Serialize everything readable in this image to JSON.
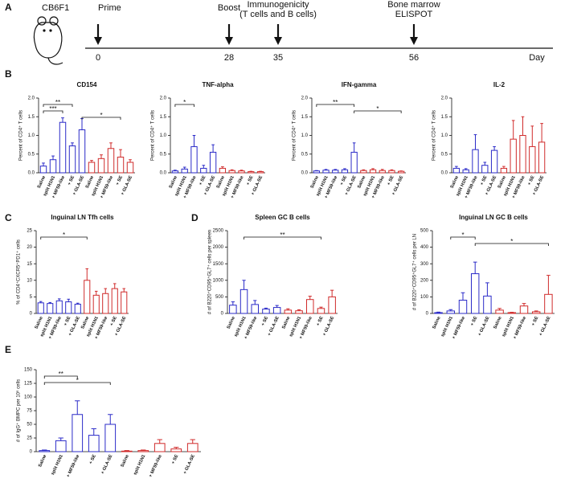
{
  "panels": [
    "A",
    "B",
    "C",
    "D",
    "E"
  ],
  "timeline": {
    "strain": "CB6F1",
    "axis_label": "Day",
    "events": [
      {
        "label": [
          "Prime"
        ],
        "day": "0"
      },
      {
        "label": [
          "Boost"
        ],
        "day": "28"
      },
      {
        "label": [
          "Immunogenicity",
          "(T cells and B cells)"
        ],
        "day": "35"
      },
      {
        "label": [
          "Bone marrow",
          "ELISPOT"
        ],
        "day": "56"
      }
    ]
  },
  "chart_data": [
    {
      "type": "bar",
      "title": "CD154",
      "y_label": "Percent of CD4⁺ T cells",
      "categories": [
        "Saline",
        "split H1N1",
        "+ MF59-like",
        "+ SE",
        "+ GLA-SE",
        "Saline",
        "split H1N1",
        "+ MF59-like",
        "+ SE",
        "+ GLA-SE"
      ],
      "values": [
        0.18,
        0.35,
        1.35,
        0.72,
        1.15,
        0.28,
        0.38,
        0.65,
        0.42,
        0.28
      ],
      "errors": [
        0.08,
        0.1,
        0.12,
        0.08,
        0.3,
        0.05,
        0.1,
        0.15,
        0.2,
        0.07
      ],
      "bar_colors": [
        "#2b2bc8",
        "#2b2bc8",
        "#2b2bc8",
        "#2b2bc8",
        "#2b2bc8",
        "#d02b2b",
        "#d02b2b",
        "#d02b2b",
        "#d02b2b",
        "#d02b2b"
      ],
      "ylim": [
        0,
        2.0
      ],
      "yticks": [
        {
          "value": 0,
          "label": "0.0"
        },
        {
          "value": 0.5,
          "label": "0.5"
        },
        {
          "value": 1.0,
          "label": "1.0"
        },
        {
          "value": 1.5,
          "label": "1.5"
        },
        {
          "value": 2.0,
          "label": "2.0"
        }
      ],
      "annotations": [
        {
          "label": "**",
          "from": 0,
          "to": 3
        },
        {
          "label": "***",
          "from": 0,
          "to": 2
        },
        {
          "label": "*",
          "from": 4,
          "to": 8
        }
      ]
    },
    {
      "type": "bar",
      "title": "TNF-alpha",
      "y_label": "Percent of CD4⁺ T cells",
      "categories": [
        "Saline",
        "split H1N1",
        "+ MF59-like",
        "+ SE",
        "+ GLA-SE",
        "Saline",
        "split H1N1",
        "+ MF59-like",
        "+ SE",
        "+ GLA-SE"
      ],
      "values": [
        0.05,
        0.1,
        0.7,
        0.12,
        0.55,
        0.12,
        0.06,
        0.05,
        0.03,
        0.03
      ],
      "errors": [
        0.02,
        0.05,
        0.3,
        0.08,
        0.2,
        0.04,
        0.02,
        0.02,
        0.01,
        0.01
      ],
      "bar_colors": [
        "#2b2bc8",
        "#2b2bc8",
        "#2b2bc8",
        "#2b2bc8",
        "#2b2bc8",
        "#d02b2b",
        "#d02b2b",
        "#d02b2b",
        "#d02b2b",
        "#d02b2b"
      ],
      "ylim": [
        0,
        2.0
      ],
      "yticks": [
        {
          "value": 0,
          "label": "0.0"
        },
        {
          "value": 0.5,
          "label": "0.5"
        },
        {
          "value": 1.0,
          "label": "1.0"
        },
        {
          "value": 1.5,
          "label": "1.5"
        },
        {
          "value": 2.0,
          "label": "2.0"
        }
      ],
      "annotations": [
        {
          "label": "*",
          "from": 0,
          "to": 2
        }
      ]
    },
    {
      "type": "bar",
      "title": "IFN-gamma",
      "y_label": "Percent of CD4⁺ T cells",
      "categories": [
        "Saline",
        "split H1N1",
        "+ MF59-like",
        "+ SE",
        "+ GLA-SE",
        "Saline",
        "split H1N1",
        "+ MF59-like",
        "+ SE",
        "+ GLA-SE"
      ],
      "values": [
        0.05,
        0.07,
        0.07,
        0.08,
        0.55,
        0.06,
        0.08,
        0.06,
        0.06,
        0.04
      ],
      "errors": [
        0.01,
        0.02,
        0.02,
        0.03,
        0.25,
        0.02,
        0.03,
        0.03,
        0.02,
        0.01
      ],
      "bar_colors": [
        "#2b2bc8",
        "#2b2bc8",
        "#2b2bc8",
        "#2b2bc8",
        "#2b2bc8",
        "#d02b2b",
        "#d02b2b",
        "#d02b2b",
        "#d02b2b",
        "#d02b2b"
      ],
      "ylim": [
        0,
        2.0
      ],
      "yticks": [
        {
          "value": 0,
          "label": "0.0"
        },
        {
          "value": 0.5,
          "label": "0.5"
        },
        {
          "value": 1.0,
          "label": "1.0"
        },
        {
          "value": 1.5,
          "label": "1.5"
        },
        {
          "value": 2.0,
          "label": "2.0"
        }
      ],
      "annotations": [
        {
          "label": "**",
          "from": 0,
          "to": 4
        },
        {
          "label": "*",
          "from": 4,
          "to": 9
        }
      ]
    },
    {
      "type": "bar",
      "title": "IL-2",
      "y_label": "Percent of CD4⁺ T cells",
      "categories": [
        "Saline",
        "split H1N1",
        "+ MF59-like",
        "+ SE",
        "+ GLA-SE",
        "Saline",
        "split H1N1",
        "+ MF59-like",
        "+ SE",
        "+ GLA-SE"
      ],
      "values": [
        0.12,
        0.08,
        0.62,
        0.2,
        0.6,
        0.12,
        0.9,
        1.0,
        0.7,
        0.82
      ],
      "errors": [
        0.05,
        0.03,
        0.4,
        0.08,
        0.1,
        0.05,
        0.5,
        0.5,
        0.55,
        0.5
      ],
      "bar_colors": [
        "#2b2bc8",
        "#2b2bc8",
        "#2b2bc8",
        "#2b2bc8",
        "#2b2bc8",
        "#d02b2b",
        "#d02b2b",
        "#d02b2b",
        "#d02b2b",
        "#d02b2b"
      ],
      "ylim": [
        0,
        2.0
      ],
      "yticks": [
        {
          "value": 0,
          "label": "0.0"
        },
        {
          "value": 0.5,
          "label": "0.5"
        },
        {
          "value": 1.0,
          "label": "1.0"
        },
        {
          "value": 1.5,
          "label": "1.5"
        },
        {
          "value": 2.0,
          "label": "2.0"
        }
      ],
      "annotations": []
    },
    {
      "type": "bar",
      "title": "Inguinal LN Tfh cells",
      "y_label": "% of CD4⁺CXCR5⁺PD1⁺ cells",
      "categories": [
        "Saline",
        "split H1N1",
        "+ MF59-like",
        "+ SE",
        "+ GLA-SE",
        "Saline",
        "split H1N1",
        "+ MF59-like",
        "+ SE",
        "+ GLA-SE"
      ],
      "values": [
        3.2,
        3.0,
        3.8,
        3.5,
        2.8,
        10,
        5.5,
        6,
        7.5,
        6.5
      ],
      "errors": [
        0.4,
        0.3,
        0.6,
        0.8,
        0.3,
        3.5,
        1.2,
        1.5,
        1.5,
        1
      ],
      "bar_colors": [
        "#2b2bc8",
        "#2b2bc8",
        "#2b2bc8",
        "#2b2bc8",
        "#2b2bc8",
        "#d02b2b",
        "#d02b2b",
        "#d02b2b",
        "#d02b2b",
        "#d02b2b"
      ],
      "ylim": [
        0,
        25
      ],
      "yticks": [
        0,
        5,
        10,
        15,
        20,
        25
      ],
      "annotations": [
        {
          "label": "*",
          "from": 0,
          "to": 5
        }
      ]
    },
    {
      "type": "bar",
      "title": "Spleen GC B cells",
      "y_label": "# of B220⁺CD95⁺GL7⁺ cells per spleen",
      "categories": [
        "Saline",
        "split H1N1",
        "+ MF59-like",
        "+ SE",
        "+ GLA-SE",
        "Saline",
        "split H1N1",
        "+ MF59-like",
        "+ SE",
        "+ GLA-SE"
      ],
      "values": [
        250,
        720,
        270,
        130,
        180,
        100,
        80,
        420,
        150,
        500
      ],
      "errors": [
        100,
        280,
        120,
        30,
        60,
        40,
        30,
        100,
        40,
        200
      ],
      "bar_colors": [
        "#2b2bc8",
        "#2b2bc8",
        "#2b2bc8",
        "#2b2bc8",
        "#2b2bc8",
        "#d02b2b",
        "#d02b2b",
        "#d02b2b",
        "#d02b2b",
        "#d02b2b"
      ],
      "ylim": [
        0,
        2500
      ],
      "yticks": [
        0,
        500,
        1000,
        1500,
        2000,
        2500
      ],
      "annotations": [
        {
          "label": "**",
          "from": 1,
          "to": 8
        }
      ]
    },
    {
      "type": "bar",
      "title": "Inguinal LN GC B cells",
      "y_label": "# of B220⁺CD95⁺GL7⁺ cells per LN",
      "categories": [
        "Saline",
        "split H1N1",
        "+ MF59-like",
        "+ SE",
        "+ GLA-SE",
        "Saline",
        "split H1N1",
        "+ MF59-like",
        "+ SE",
        "+ GLA-SE"
      ],
      "values": [
        5,
        15,
        80,
        240,
        105,
        20,
        5,
        45,
        10,
        115
      ],
      "errors": [
        3,
        8,
        45,
        70,
        80,
        10,
        2,
        15,
        5,
        115
      ],
      "bar_colors": [
        "#2b2bc8",
        "#2b2bc8",
        "#2b2bc8",
        "#2b2bc8",
        "#2b2bc8",
        "#d02b2b",
        "#d02b2b",
        "#d02b2b",
        "#d02b2b",
        "#d02b2b"
      ],
      "ylim": [
        0,
        500
      ],
      "yticks": [
        0,
        100,
        200,
        300,
        400,
        500
      ],
      "annotations": [
        {
          "label": "*",
          "from": 1,
          "to": 3
        },
        {
          "label": "*",
          "from": 3,
          "to": 9
        }
      ]
    },
    {
      "type": "bar",
      "y_label": "# of IgG⁺ BMPC per 10⁶ cells",
      "categories": [
        "Saline",
        "split H1N1",
        "+ MF59-like",
        "+ SE",
        "+ GLA-SE",
        "Saline",
        "split H1N1",
        "+ MF59-like",
        "+ SE",
        "+ GLA-SE"
      ],
      "values": [
        2,
        20,
        68,
        30,
        50,
        1,
        2,
        15,
        5,
        15
      ],
      "errors": [
        1,
        5,
        25,
        12,
        18,
        1,
        1,
        7,
        3,
        7
      ],
      "bar_colors": [
        "#2b2bc8",
        "#2b2bc8",
        "#2b2bc8",
        "#2b2bc8",
        "#2b2bc8",
        "#d02b2b",
        "#d02b2b",
        "#d02b2b",
        "#d02b2b",
        "#d02b2b"
      ],
      "ylim": [
        0,
        150
      ],
      "yticks": [
        0,
        25,
        50,
        75,
        100,
        125,
        150
      ],
      "annotations": [
        {
          "label": "**",
          "from": 0,
          "to": 2
        },
        {
          "label": "*",
          "from": 0,
          "to": 4
        }
      ]
    }
  ]
}
